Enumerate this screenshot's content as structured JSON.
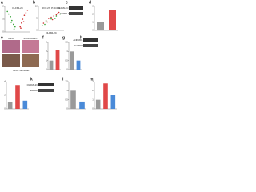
{
  "panel_letters": [
    "a",
    "b",
    "c",
    "d",
    "e",
    "f",
    "g",
    "h",
    "k",
    "l",
    "m"
  ],
  "blot_c": {
    "labels": [
      "OLFML2C",
      "GAPDH"
    ]
  },
  "blot_h": {
    "labels": [
      "ANKRD1",
      "GAPDH"
    ]
  },
  "blot_k": {
    "labels": [
      "OLFML2C",
      "GAPDH"
    ]
  },
  "histology": {
    "groups": [
      "shNC",
      "shOLFML2C"
    ],
    "caption": "SKO-TG model"
  },
  "chart_data": [
    {
      "type": "scatter",
      "annotation": "OLFML2C",
      "xlim": [
        -4,
        4
      ],
      "ylim": [
        0,
        10
      ],
      "yticks": [
        0,
        5,
        10
      ],
      "series": [
        {
          "color": "#d03030",
          "x": [
            0.8,
            1.2,
            1.6,
            2.1,
            2.6,
            3.1,
            1.0,
            1.9
          ],
          "values": [
            2,
            3.5,
            5,
            6.5,
            7.5,
            8.5,
            1.5,
            4
          ]
        },
        {
          "color": "#30a030",
          "x": [
            -0.8,
            -1.3,
            -1.8,
            -2.2,
            -2.8,
            -3.2,
            -1.1,
            -2.0
          ],
          "values": [
            2,
            3,
            4.5,
            6,
            7,
            8,
            1.2,
            3.8
          ]
        }
      ]
    },
    {
      "type": "scatter",
      "annotation": "R=0.27, P<0.001",
      "xlabel": "OLFML2C",
      "xlim": [
        0,
        10
      ],
      "ylim": [
        0,
        10
      ],
      "yticks": [
        0,
        5,
        10
      ],
      "series": [
        {
          "color": "#d03030",
          "x": [
            2,
            3,
            3.5,
            4,
            5,
            5.5,
            6,
            7,
            7.5,
            8
          ],
          "values": [
            3,
            4,
            3.5,
            5,
            5.5,
            4.5,
            6,
            6.5,
            7,
            7.5
          ]
        },
        {
          "color": "#30a030",
          "x": [
            1.5,
            2.5,
            3,
            4.5,
            5,
            6.5,
            7,
            8.5
          ],
          "values": [
            2,
            2.5,
            4,
            3.5,
            4.8,
            5,
            6,
            6.8
          ]
        }
      ]
    },
    {
      "type": "bar",
      "ylim": [
        0,
        3
      ],
      "yticks": [
        0,
        1,
        2,
        3
      ],
      "values": [
        1,
        2.5
      ],
      "colors": [
        "#9a9a9a",
        "#e04848"
      ]
    },
    {
      "type": "bar",
      "ylim": [
        0,
        3
      ],
      "yticks": [
        0,
        1,
        2,
        3
      ],
      "values": [
        1,
        2.2
      ],
      "colors": [
        "#9a9a9a",
        "#e04848"
      ]
    },
    {
      "type": "bar",
      "ylim": [
        0,
        1.5
      ],
      "yticks": [
        0,
        0.5,
        1,
        1.5
      ],
      "values": [
        1,
        0.5
      ],
      "colors": [
        "#9a9a9a",
        "#4a8ad8"
      ]
    },
    {
      "type": "bar",
      "ylim": [
        0,
        4
      ],
      "yticks": [
        0,
        2,
        4
      ],
      "values": [
        1,
        3.5,
        1.2
      ],
      "colors": [
        "#9a9a9a",
        "#e04848",
        "#4a8ad8"
      ]
    },
    {
      "type": "bar",
      "ylim": [
        0,
        1.5
      ],
      "yticks": [
        0,
        0.5,
        1,
        1.5
      ],
      "values": [
        1,
        0.4
      ],
      "colors": [
        "#9a9a9a",
        "#4a8ad8"
      ]
    },
    {
      "type": "bar",
      "ylim": [
        0,
        3
      ],
      "yticks": [
        0,
        1,
        2,
        3
      ],
      "values": [
        1,
        2.8,
        1.5
      ],
      "colors": [
        "#9a9a9a",
        "#e04848",
        "#4a8ad8"
      ]
    }
  ]
}
